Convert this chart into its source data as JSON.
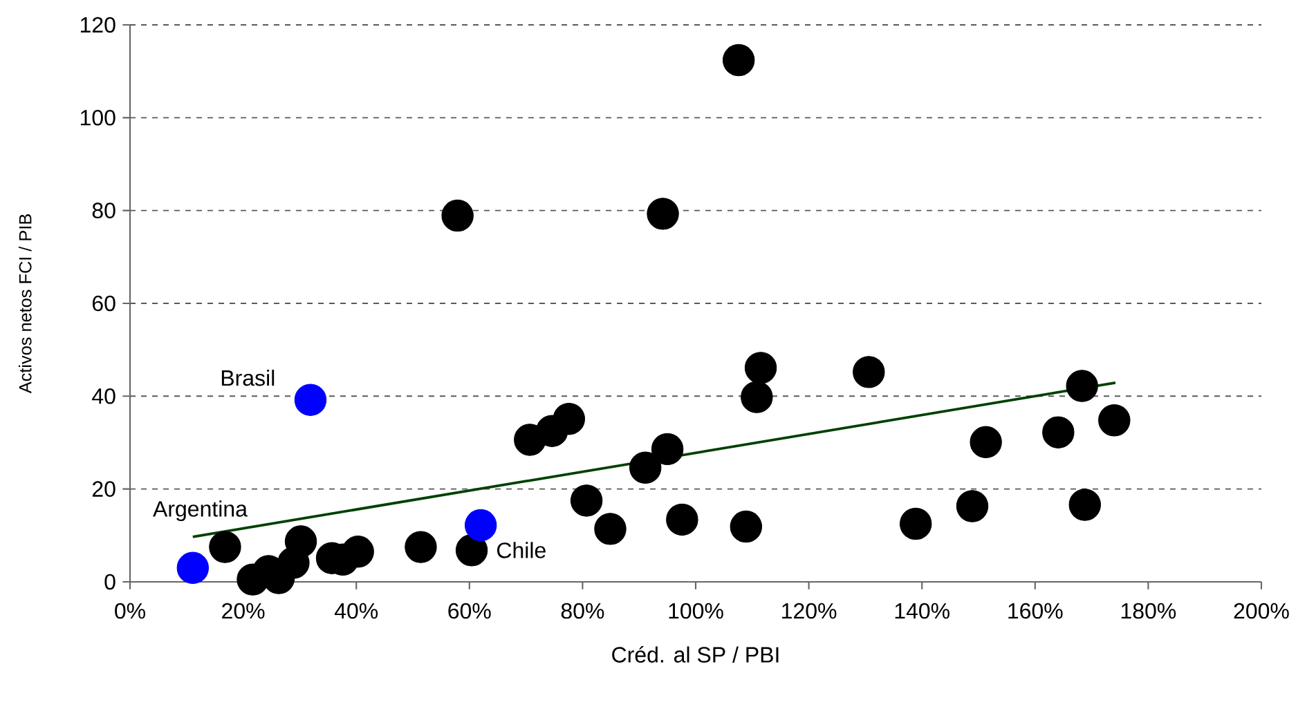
{
  "chart_data": {
    "type": "scatter",
    "xlabel": "Créd. al SP / PBI",
    "ylabel": "Activos netos  FCI / PIB",
    "xlim": [
      0,
      200
    ],
    "ylim": [
      0,
      120
    ],
    "xticks": [
      {
        "value": 0,
        "label": "0%"
      },
      {
        "value": 20,
        "label": "20%"
      },
      {
        "value": 40,
        "label": "40%"
      },
      {
        "value": 60,
        "label": "60%"
      },
      {
        "value": 80,
        "label": "80%"
      },
      {
        "value": 100,
        "label": "100%"
      },
      {
        "value": 120,
        "label": "120%"
      },
      {
        "value": 140,
        "label": "140%"
      },
      {
        "value": 160,
        "label": "160%"
      },
      {
        "value": 180,
        "label": "180%"
      },
      {
        "value": 200,
        "label": "200%"
      }
    ],
    "yticks": [
      0,
      20,
      40,
      60,
      80,
      100,
      120
    ],
    "grid": "y",
    "series": [
      {
        "marker": "circle",
        "color": "#000000",
        "x": [
          16.8,
          21.7,
          24.5,
          26.3,
          28.9,
          30.2,
          35.7,
          37.6,
          40.3,
          51.4,
          60.4,
          57.9,
          94.2,
          70.7,
          74.6,
          77.6,
          80.7,
          84.9,
          91.1,
          95.0,
          97.6,
          107.6,
          111.5,
          110.8,
          108.9,
          130.6,
          138.9,
          148.9,
          151.3,
          164.1,
          168.3,
          168.8,
          174.0
        ],
        "values": [
          7.5,
          0.5,
          2.3,
          0.8,
          4.1,
          8.7,
          5.1,
          4.8,
          6.5,
          7.5,
          6.8,
          78.9,
          79.3,
          30.6,
          32.5,
          35.1,
          17.5,
          11.4,
          24.6,
          28.6,
          13.4,
          112.4,
          46.1,
          39.8,
          11.9,
          45.2,
          12.5,
          16.3,
          30.1,
          32.2,
          42.2,
          16.6,
          34.8
        ]
      },
      {
        "marker": "circle",
        "color": "#0000ff",
        "x": [
          11.1,
          31.9,
          62.0
        ],
        "values": [
          3.0,
          39.2,
          12.2
        ]
      },
      {
        "type": "line",
        "marker": "none",
        "color": "#004000",
        "x": [
          11.1,
          174.2
        ],
        "values": [
          9.7,
          42.9
        ]
      }
    ],
    "annotations": [
      {
        "text": "Argentina",
        "x": 11.1,
        "y": 3.0
      },
      {
        "text": "Brasil",
        "x": 31.9,
        "y": 39.2
      },
      {
        "text": "Chile",
        "x": 62.0,
        "y": 12.2
      }
    ]
  }
}
